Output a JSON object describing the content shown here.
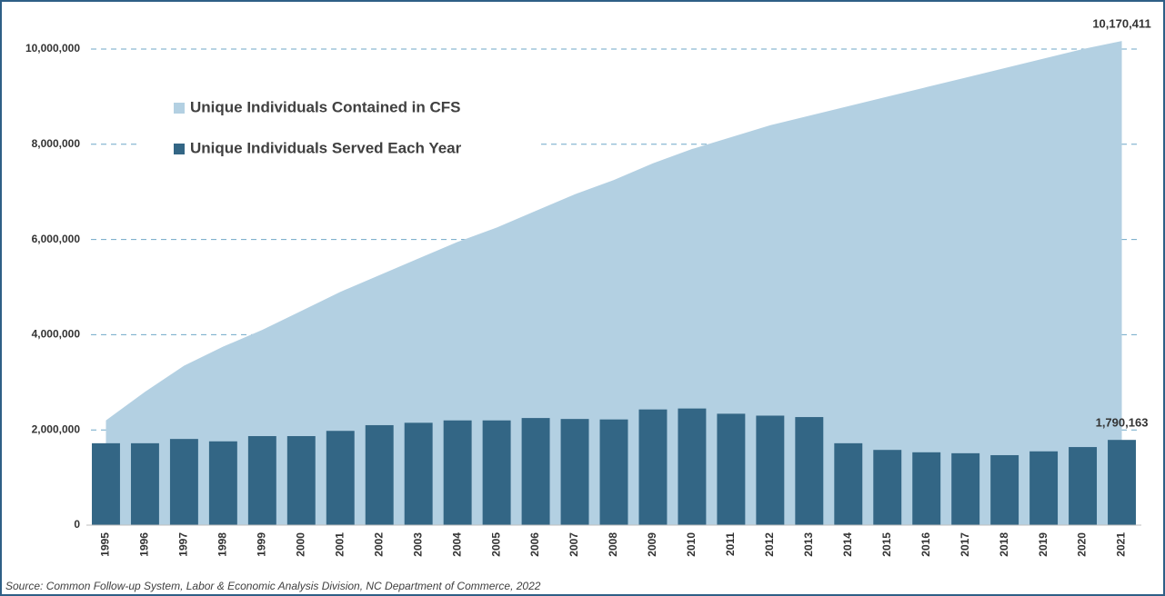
{
  "chart_data": {
    "type": "area-bar",
    "categories": [
      "1995",
      "1996",
      "1997",
      "1998",
      "1999",
      "2000",
      "2001",
      "2002",
      "2003",
      "2004",
      "2005",
      "2006",
      "2007",
      "2008",
      "2009",
      "2010",
      "2011",
      "2012",
      "2013",
      "2014",
      "2015",
      "2016",
      "2017",
      "2018",
      "2019",
      "2020",
      "2021"
    ],
    "series": [
      {
        "name": "Unique Individuals Contained in CFS",
        "color": "#b3d0e2",
        "kind": "area",
        "values": [
          2200000,
          2800000,
          3350000,
          3750000,
          4100000,
          4500000,
          4900000,
          5250000,
          5600000,
          5950000,
          6250000,
          6600000,
          6950000,
          7250000,
          7600000,
          7900000,
          8150000,
          8400000,
          8600000,
          8800000,
          9000000,
          9200000,
          9400000,
          9600000,
          9800000,
          10000000,
          10170411
        ],
        "value_labels": [
          null,
          null,
          null,
          null,
          null,
          null,
          null,
          null,
          null,
          null,
          null,
          null,
          null,
          null,
          null,
          null,
          null,
          null,
          null,
          null,
          null,
          null,
          null,
          null,
          null,
          null,
          "10,170,411"
        ]
      },
      {
        "name": "Unique Individuals Served Each Year",
        "color": "#336685",
        "kind": "bar",
        "values": [
          1720000,
          1720000,
          1810000,
          1760000,
          1870000,
          1870000,
          1980000,
          2100000,
          2150000,
          2200000,
          2200000,
          2250000,
          2230000,
          2220000,
          2430000,
          2450000,
          2340000,
          2300000,
          2270000,
          1720000,
          1580000,
          1530000,
          1510000,
          1470000,
          1550000,
          1640000,
          1790163
        ],
        "value_labels": [
          null,
          null,
          null,
          null,
          null,
          null,
          null,
          null,
          null,
          null,
          null,
          null,
          null,
          null,
          null,
          null,
          null,
          null,
          null,
          null,
          null,
          null,
          null,
          null,
          null,
          null,
          "1,790,163"
        ]
      }
    ],
    "ylim": [
      0,
      10000000
    ],
    "yticks": [
      0,
      {
        "value": 2000000,
        "label": "2,000,000"
      },
      {
        "value": 4000000,
        "label": "4,000,000"
      },
      {
        "value": 6000000,
        "label": "6,000,000"
      },
      {
        "value": 8000000,
        "label": "8,000,000"
      },
      {
        "value": 10000000,
        "label": "10,000,000"
      }
    ],
    "grid": true,
    "legend": "upper left",
    "source": "Source: Common Follow-up System, Labor & Economic Analysis Division, NC Department of Commerce, 2022"
  }
}
